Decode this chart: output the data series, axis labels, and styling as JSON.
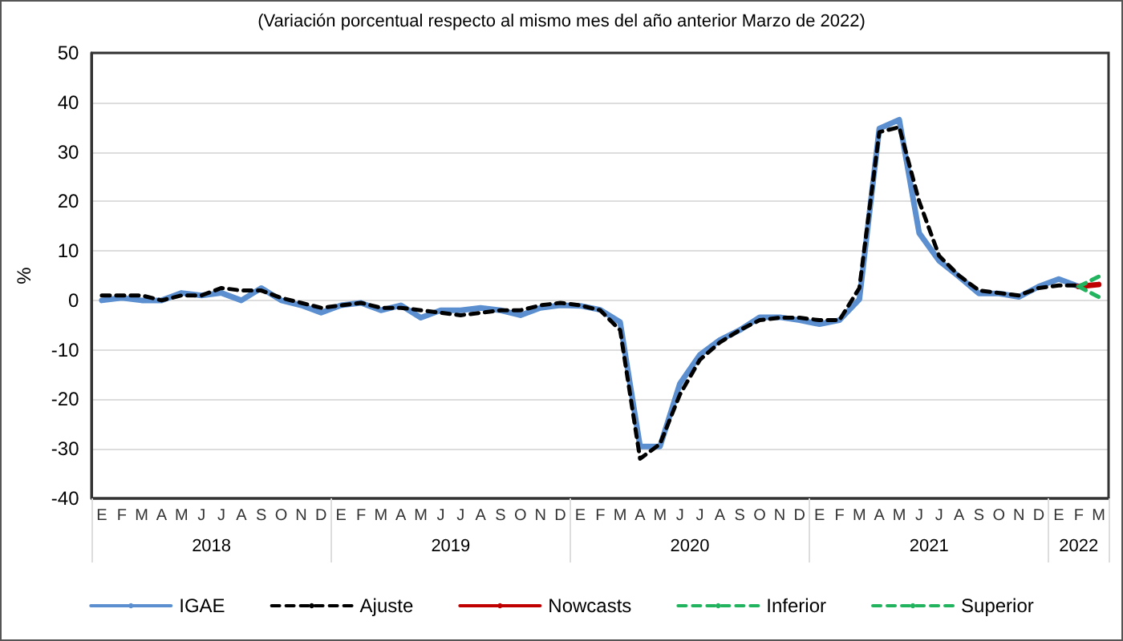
{
  "chart_data": {
    "type": "line",
    "title": "(Variación porcentual respecto al mismo mes del año anterior Marzo de 2022)",
    "ylabel": "%",
    "categories": [
      "E",
      "F",
      "M",
      "A",
      "M",
      "J",
      "J",
      "A",
      "S",
      "O",
      "N",
      "D",
      "E",
      "F",
      "M",
      "A",
      "M",
      "J",
      "J",
      "A",
      "S",
      "O",
      "N",
      "D",
      "E",
      "F",
      "M",
      "A",
      "M",
      "J",
      "J",
      "A",
      "S",
      "O",
      "N",
      "D",
      "E",
      "F",
      "M",
      "A",
      "M",
      "J",
      "J",
      "A",
      "S",
      "O",
      "N",
      "D",
      "E",
      "F",
      "M"
    ],
    "annotations": [
      "2018",
      "2019",
      "2020",
      "2021",
      "2022"
    ],
    "series": [
      {
        "name": "IGAE",
        "color": "#5b8fd0",
        "line_style": "solid",
        "values": [
          0,
          0.5,
          0,
          0,
          1.5,
          1,
          1.5,
          0,
          2.5,
          0,
          -1,
          -2.5,
          -1,
          -0.5,
          -2,
          -1,
          -3.5,
          -2,
          -2,
          -1.5,
          -2,
          -3,
          -1.5,
          -1,
          -1.1,
          -1.9,
          -4.4,
          -29.5,
          -29.5,
          -16.8,
          -11,
          -8,
          -6,
          -3.4,
          -3.4,
          -4,
          -4.8,
          -4,
          0.2,
          34.7,
          36.5,
          13.6,
          8,
          4.8,
          1.4,
          1.4,
          0.7,
          2.8,
          4.3,
          2.8,
          null
        ]
      },
      {
        "name": "Ajuste",
        "color": "#000000",
        "line_style": "dashed",
        "values": [
          1,
          1,
          1,
          0,
          1,
          1,
          2.5,
          2,
          2,
          0.5,
          -0.5,
          -1.5,
          -1,
          -0.5,
          -1.5,
          -1.5,
          -2,
          -2.5,
          -3,
          -2.5,
          -2,
          -2,
          -1,
          -0.5,
          -1,
          -2,
          -6,
          -32,
          -29,
          -19,
          -12,
          -8.5,
          -6,
          -4,
          -3.5,
          -3.5,
          -4,
          -4,
          2.5,
          34,
          35,
          20,
          9,
          5,
          2,
          1.5,
          1,
          2.5,
          3,
          3,
          null
        ]
      },
      {
        "name": "Nowcasts",
        "color": "#c00000",
        "line_style": "solid",
        "values": [
          null,
          null,
          null,
          null,
          null,
          null,
          null,
          null,
          null,
          null,
          null,
          null,
          null,
          null,
          null,
          null,
          null,
          null,
          null,
          null,
          null,
          null,
          null,
          null,
          null,
          null,
          null,
          null,
          null,
          null,
          null,
          null,
          null,
          null,
          null,
          null,
          null,
          null,
          null,
          null,
          null,
          null,
          null,
          null,
          null,
          null,
          null,
          null,
          null,
          2.8,
          3.2
        ]
      },
      {
        "name": "Inferior",
        "color": "#22b35e",
        "line_style": "dashed",
        "values": [
          null,
          null,
          null,
          null,
          null,
          null,
          null,
          null,
          null,
          null,
          null,
          null,
          null,
          null,
          null,
          null,
          null,
          null,
          null,
          null,
          null,
          null,
          null,
          null,
          null,
          null,
          null,
          null,
          null,
          null,
          null,
          null,
          null,
          null,
          null,
          null,
          null,
          null,
          null,
          null,
          null,
          null,
          null,
          null,
          null,
          null,
          null,
          null,
          null,
          2.8,
          0.7
        ]
      },
      {
        "name": "Superior",
        "color": "#22b35e",
        "line_style": "dashed",
        "values": [
          null,
          null,
          null,
          null,
          null,
          null,
          null,
          null,
          null,
          null,
          null,
          null,
          null,
          null,
          null,
          null,
          null,
          null,
          null,
          null,
          null,
          null,
          null,
          null,
          null,
          null,
          null,
          null,
          null,
          null,
          null,
          null,
          null,
          null,
          null,
          null,
          null,
          null,
          null,
          null,
          null,
          null,
          null,
          null,
          null,
          null,
          null,
          null,
          null,
          2.8,
          4.8
        ]
      }
    ],
    "ylim": [
      -40,
      50
    ],
    "yticks": [
      -40,
      -30,
      -20,
      -10,
      0,
      10,
      20,
      30,
      40,
      50
    ],
    "grid": "y",
    "legend": "bottom",
    "marker": "none"
  }
}
